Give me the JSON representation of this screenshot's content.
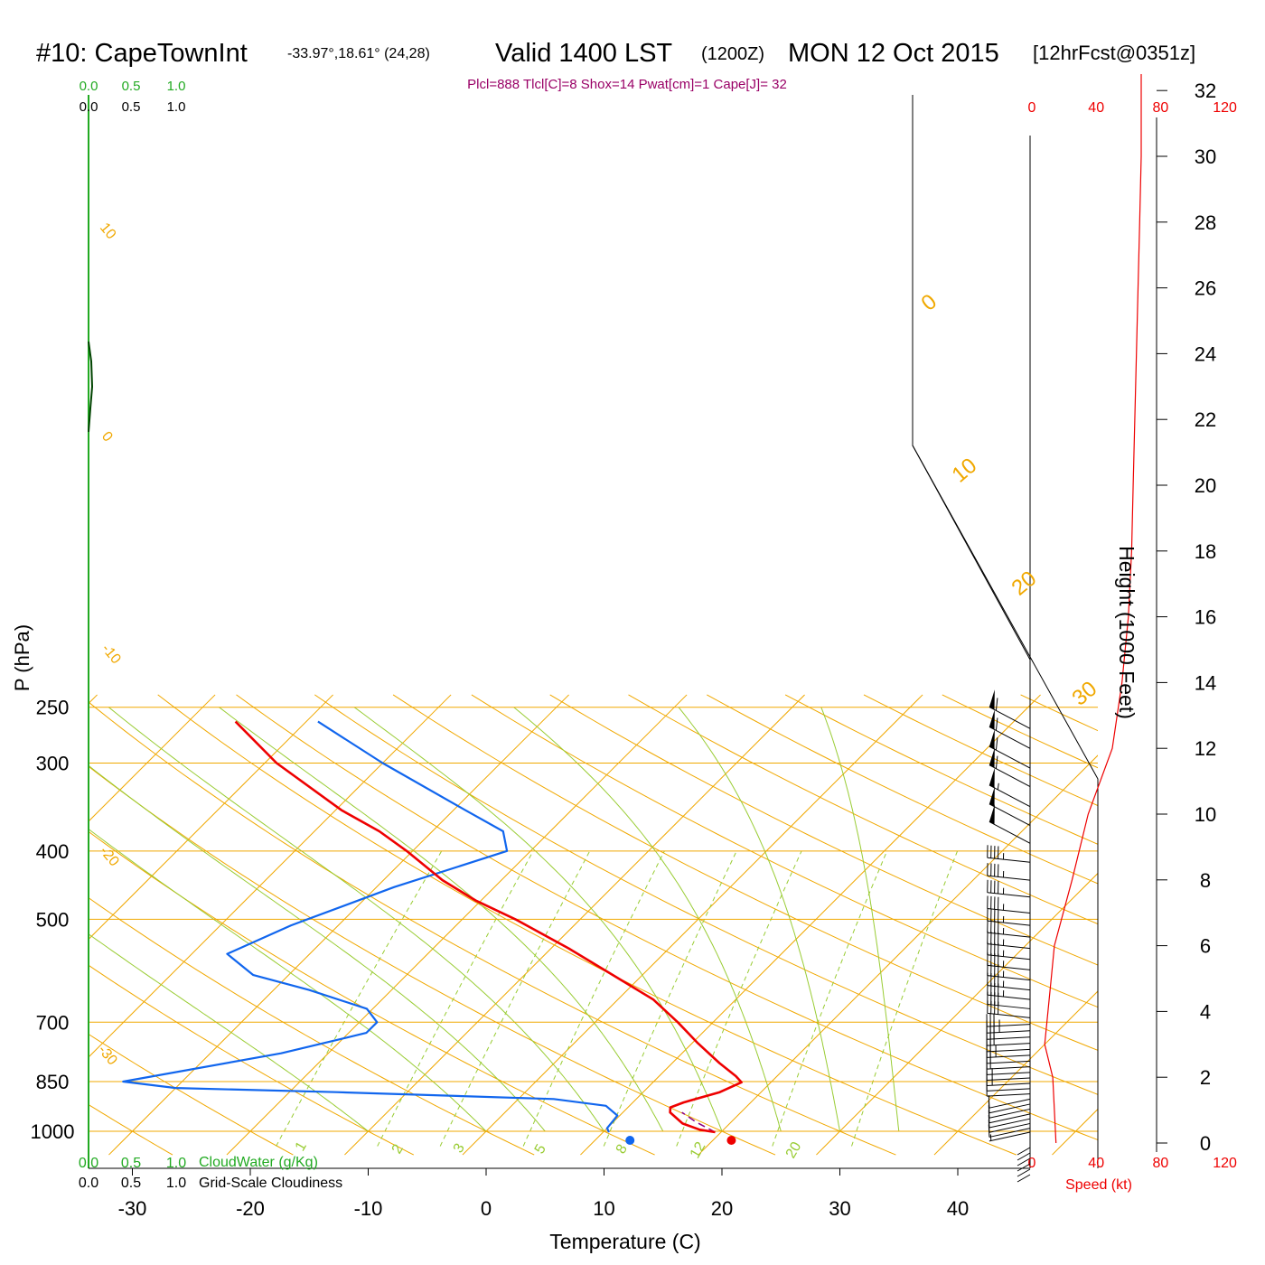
{
  "header": {
    "station": "#10: CapeTownInt",
    "coords": "-33.97°,18.61° (24,28)",
    "valid": "Valid 1400 LST",
    "zulu": "(1200Z)",
    "date": "MON 12 Oct 2015",
    "forecast": "[12hrFcst@0351z]",
    "indices": "Plcl=888 Tlcl[C]=8 Shox=14 Pwat[cm]=1 Cape[J]= 32"
  },
  "colors": {
    "temperature": "#ee0000",
    "dewpoint": "#1166ee",
    "isotherm": "#f0a800",
    "adiabat": "#99cc33",
    "cloud": "#22aa22",
    "parcel": "#880088",
    "wind": "#000000",
    "speed": "#ee0000"
  },
  "chart_data": {
    "type": "skew-t",
    "xlabel": "Temperature (C)",
    "ylabel": "P (hPa)",
    "y2label": "Height (1000 Feet)",
    "x_ticks": [
      -30,
      -20,
      -10,
      0,
      10,
      20,
      30,
      40
    ],
    "p_ticks": [
      250,
      300,
      400,
      500,
      700,
      850,
      1000
    ],
    "height_ticks": [
      0,
      2,
      4,
      6,
      8,
      10,
      12,
      14,
      16,
      18,
      20,
      22,
      24,
      26,
      28,
      30,
      32
    ],
    "speed_ticks": [
      "0",
      "40",
      "80",
      "120"
    ],
    "speed_label": "Speed (kt)",
    "cloud_ticks": [
      "0.0",
      "0.5",
      "1.0"
    ],
    "cloudwater_label": "CloudWater (g/Kg)",
    "cloudiness_label": "Grid-Scale Cloudiness",
    "isotherm_labels": [
      "10",
      "0",
      "-10",
      "-20",
      "-30"
    ],
    "isotherm_labels_right": [
      "0",
      "10",
      "20",
      "30"
    ],
    "mixing_ratio_labels": [
      "1",
      "2",
      "3",
      "5",
      "8",
      "12",
      "20"
    ],
    "temperature_profile": [
      {
        "p": 1003,
        "t": 19.5
      },
      {
        "p": 995,
        "t": 18.0
      },
      {
        "p": 975,
        "t": 16.0
      },
      {
        "p": 940,
        "t": 14.0
      },
      {
        "p": 925,
        "t": 13.6
      },
      {
        "p": 910,
        "t": 14.3
      },
      {
        "p": 880,
        "t": 16.5
      },
      {
        "p": 852,
        "t": 17.5
      },
      {
        "p": 835,
        "t": 16.5
      },
      {
        "p": 800,
        "t": 14.0
      },
      {
        "p": 750,
        "t": 10.5
      },
      {
        "p": 700,
        "t": 7.0
      },
      {
        "p": 650,
        "t": 3.0
      },
      {
        "p": 600,
        "t": -2.5
      },
      {
        "p": 550,
        "t": -8.5
      },
      {
        "p": 500,
        "t": -15.5
      },
      {
        "p": 470,
        "t": -20.5
      },
      {
        "p": 440,
        "t": -25.0
      },
      {
        "p": 400,
        "t": -30.5
      },
      {
        "p": 375,
        "t": -34.5
      },
      {
        "p": 350,
        "t": -39.5
      },
      {
        "p": 300,
        "t": -49.0
      },
      {
        "p": 262,
        "t": -56.0
      }
    ],
    "dewpoint_profile": [
      {
        "p": 1003,
        "t": 10.5
      },
      {
        "p": 990,
        "t": 10.0
      },
      {
        "p": 950,
        "t": 9.8
      },
      {
        "p": 920,
        "t": 8.0
      },
      {
        "p": 900,
        "t": 3.0
      },
      {
        "p": 880,
        "t": -16.0
      },
      {
        "p": 868,
        "t": -30.0
      },
      {
        "p": 850,
        "t": -35.0
      },
      {
        "p": 775,
        "t": -24.0
      },
      {
        "p": 725,
        "t": -18.5
      },
      {
        "p": 700,
        "t": -18.5
      },
      {
        "p": 670,
        "t": -20.5
      },
      {
        "p": 630,
        "t": -27.0
      },
      {
        "p": 600,
        "t": -33.0
      },
      {
        "p": 560,
        "t": -37.0
      },
      {
        "p": 510,
        "t": -34.0
      },
      {
        "p": 450,
        "t": -28.5
      },
      {
        "p": 400,
        "t": -22.0
      },
      {
        "p": 375,
        "t": -24.0
      },
      {
        "p": 350,
        "t": -29.0
      },
      {
        "p": 300,
        "t": -40.0
      },
      {
        "p": 262,
        "t": -49.0
      }
    ],
    "surface_temperature": 20.8,
    "surface_dewpoint": 12.2,
    "parcel_path": [
      {
        "p": 1003,
        "t": 19.5
      },
      {
        "p": 970,
        "t": 17.0
      },
      {
        "p": 940,
        "t": 15.0
      }
    ],
    "wind_speed_profile": [
      {
        "z": 0,
        "kt": 15
      },
      {
        "z": 1,
        "kt": 14
      },
      {
        "z": 2,
        "kt": 13
      },
      {
        "z": 3,
        "kt": 8
      },
      {
        "z": 4,
        "kt": 10
      },
      {
        "z": 5,
        "kt": 12
      },
      {
        "z": 6,
        "kt": 14
      },
      {
        "z": 8,
        "kt": 25
      },
      {
        "z": 10,
        "kt": 35
      },
      {
        "z": 12,
        "kt": 50
      },
      {
        "z": 14,
        "kt": 56
      },
      {
        "z": 16,
        "kt": 60
      },
      {
        "z": 18,
        "kt": 62
      },
      {
        "z": 20,
        "kt": 63
      },
      {
        "z": 22,
        "kt": 64
      },
      {
        "z": 24,
        "kt": 65
      },
      {
        "z": 26,
        "kt": 66
      },
      {
        "z": 28,
        "kt": 67
      },
      {
        "z": 30,
        "kt": 68
      },
      {
        "z": 32.5,
        "kt": 68
      }
    ],
    "wind_barbs": [
      {
        "p": 1003,
        "kt": 5
      },
      {
        "p": 990,
        "kt": 10
      },
      {
        "p": 975,
        "kt": 10
      },
      {
        "p": 960,
        "kt": 10
      },
      {
        "p": 945,
        "kt": 10
      },
      {
        "p": 930,
        "kt": 10
      },
      {
        "p": 915,
        "kt": 10
      },
      {
        "p": 900,
        "kt": 10
      },
      {
        "p": 885,
        "kt": 10
      },
      {
        "p": 870,
        "kt": 10
      },
      {
        "p": 855,
        "kt": 15
      },
      {
        "p": 840,
        "kt": 15
      },
      {
        "p": 825,
        "kt": 15
      },
      {
        "p": 810,
        "kt": 20
      },
      {
        "p": 795,
        "kt": 20
      },
      {
        "p": 780,
        "kt": 25
      },
      {
        "p": 765,
        "kt": 25
      },
      {
        "p": 750,
        "kt": 30
      },
      {
        "p": 735,
        "kt": 30
      },
      {
        "p": 720,
        "kt": 35
      },
      {
        "p": 705,
        "kt": 35
      },
      {
        "p": 690,
        "kt": 40
      },
      {
        "p": 670,
        "kt": 40
      },
      {
        "p": 650,
        "kt": 45
      },
      {
        "p": 630,
        "kt": 45
      },
      {
        "p": 610,
        "kt": 45
      },
      {
        "p": 590,
        "kt": 45
      },
      {
        "p": 570,
        "kt": 45
      },
      {
        "p": 550,
        "kt": 45
      },
      {
        "p": 530,
        "kt": 45
      },
      {
        "p": 510,
        "kt": 45
      },
      {
        "p": 490,
        "kt": 45
      },
      {
        "p": 465,
        "kt": 45
      },
      {
        "p": 440,
        "kt": 45
      },
      {
        "p": 415,
        "kt": 45
      },
      {
        "p": 390,
        "kt": 50
      },
      {
        "p": 368,
        "kt": 50
      },
      {
        "p": 346,
        "kt": 55
      },
      {
        "p": 324,
        "kt": 60
      },
      {
        "p": 305,
        "kt": 60
      },
      {
        "p": 286,
        "kt": 60
      },
      {
        "p": 268,
        "kt": 60
      }
    ]
  }
}
